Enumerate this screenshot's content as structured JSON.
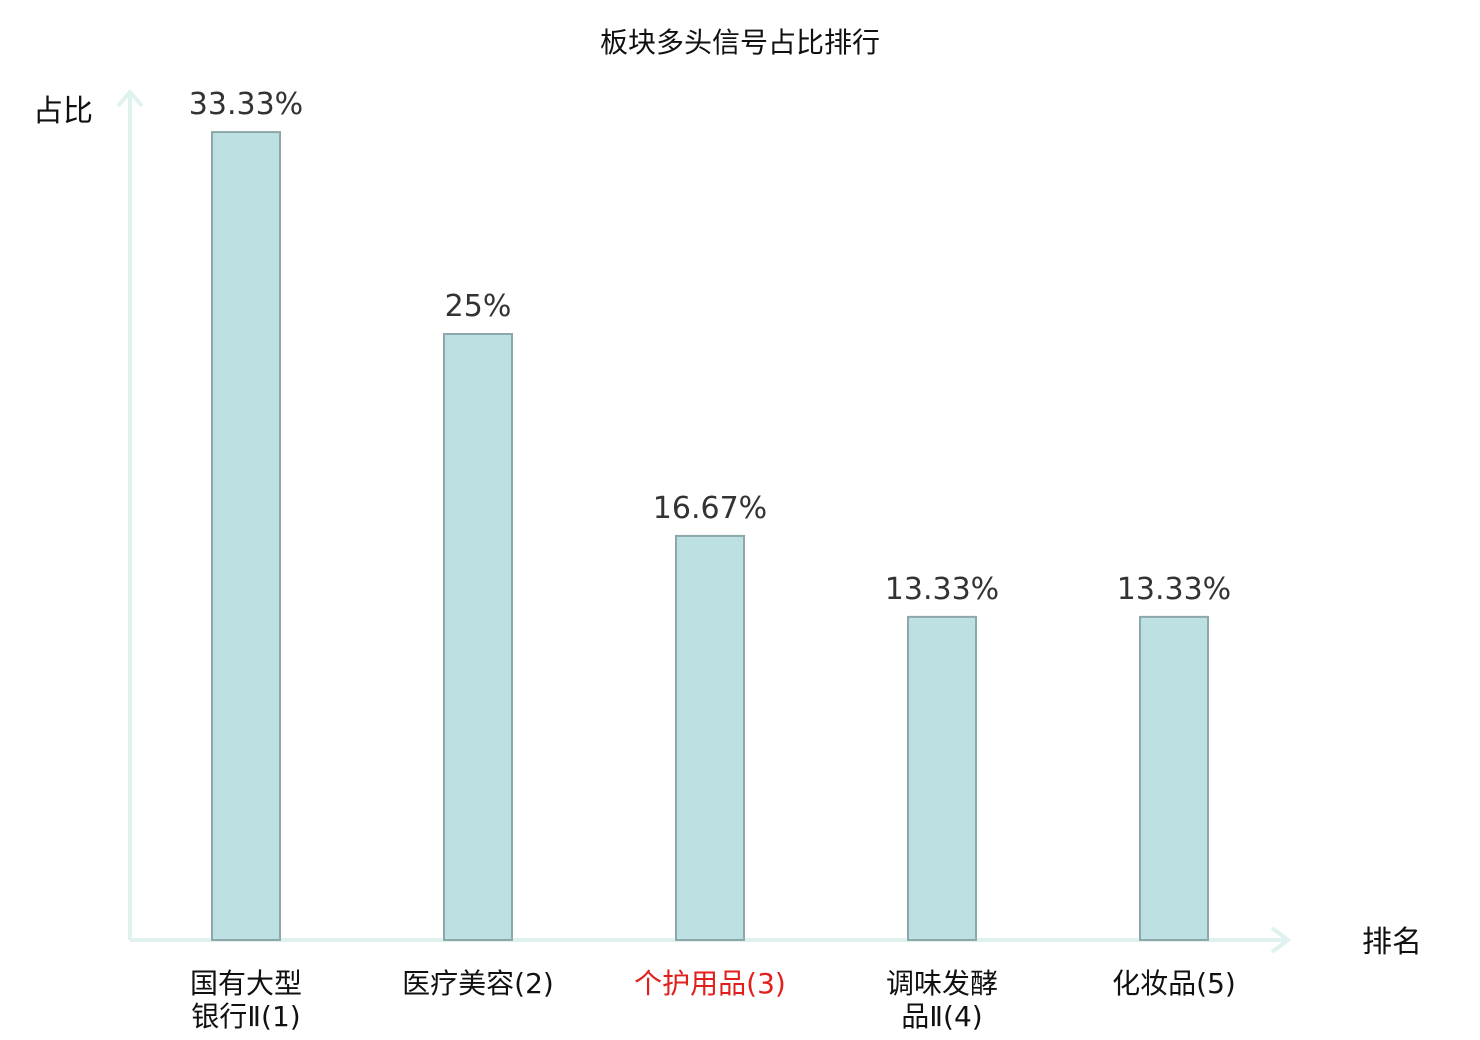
{
  "chart_data": {
    "type": "bar",
    "title": "板块多头信号占比排行",
    "ylabel": "占比",
    "xlabel": "排名",
    "ylim": [
      0,
      35
    ],
    "grid": false,
    "legend": "none",
    "categories": [
      {
        "lines": [
          "国有大型",
          "银行Ⅱ(1)"
        ],
        "highlight": false
      },
      {
        "lines": [
          "医疗美容(2)"
        ],
        "highlight": false
      },
      {
        "lines": [
          "个护用品(3)"
        ],
        "highlight": true
      },
      {
        "lines": [
          "调味发酵",
          "品Ⅱ(4)"
        ],
        "highlight": false
      },
      {
        "lines": [
          "化妆品(5)"
        ],
        "highlight": false
      }
    ],
    "values": [
      33.33,
      25,
      16.67,
      13.33,
      13.33
    ],
    "value_labels": [
      "33.33%",
      "25%",
      "16.67%",
      "13.33%",
      "13.33%"
    ],
    "colors": {
      "bar_fill": "#bde0e2",
      "bar_stroke": "#8ea7a9",
      "axis": "#e0f2ef",
      "highlight_text": "#e0201c"
    }
  }
}
